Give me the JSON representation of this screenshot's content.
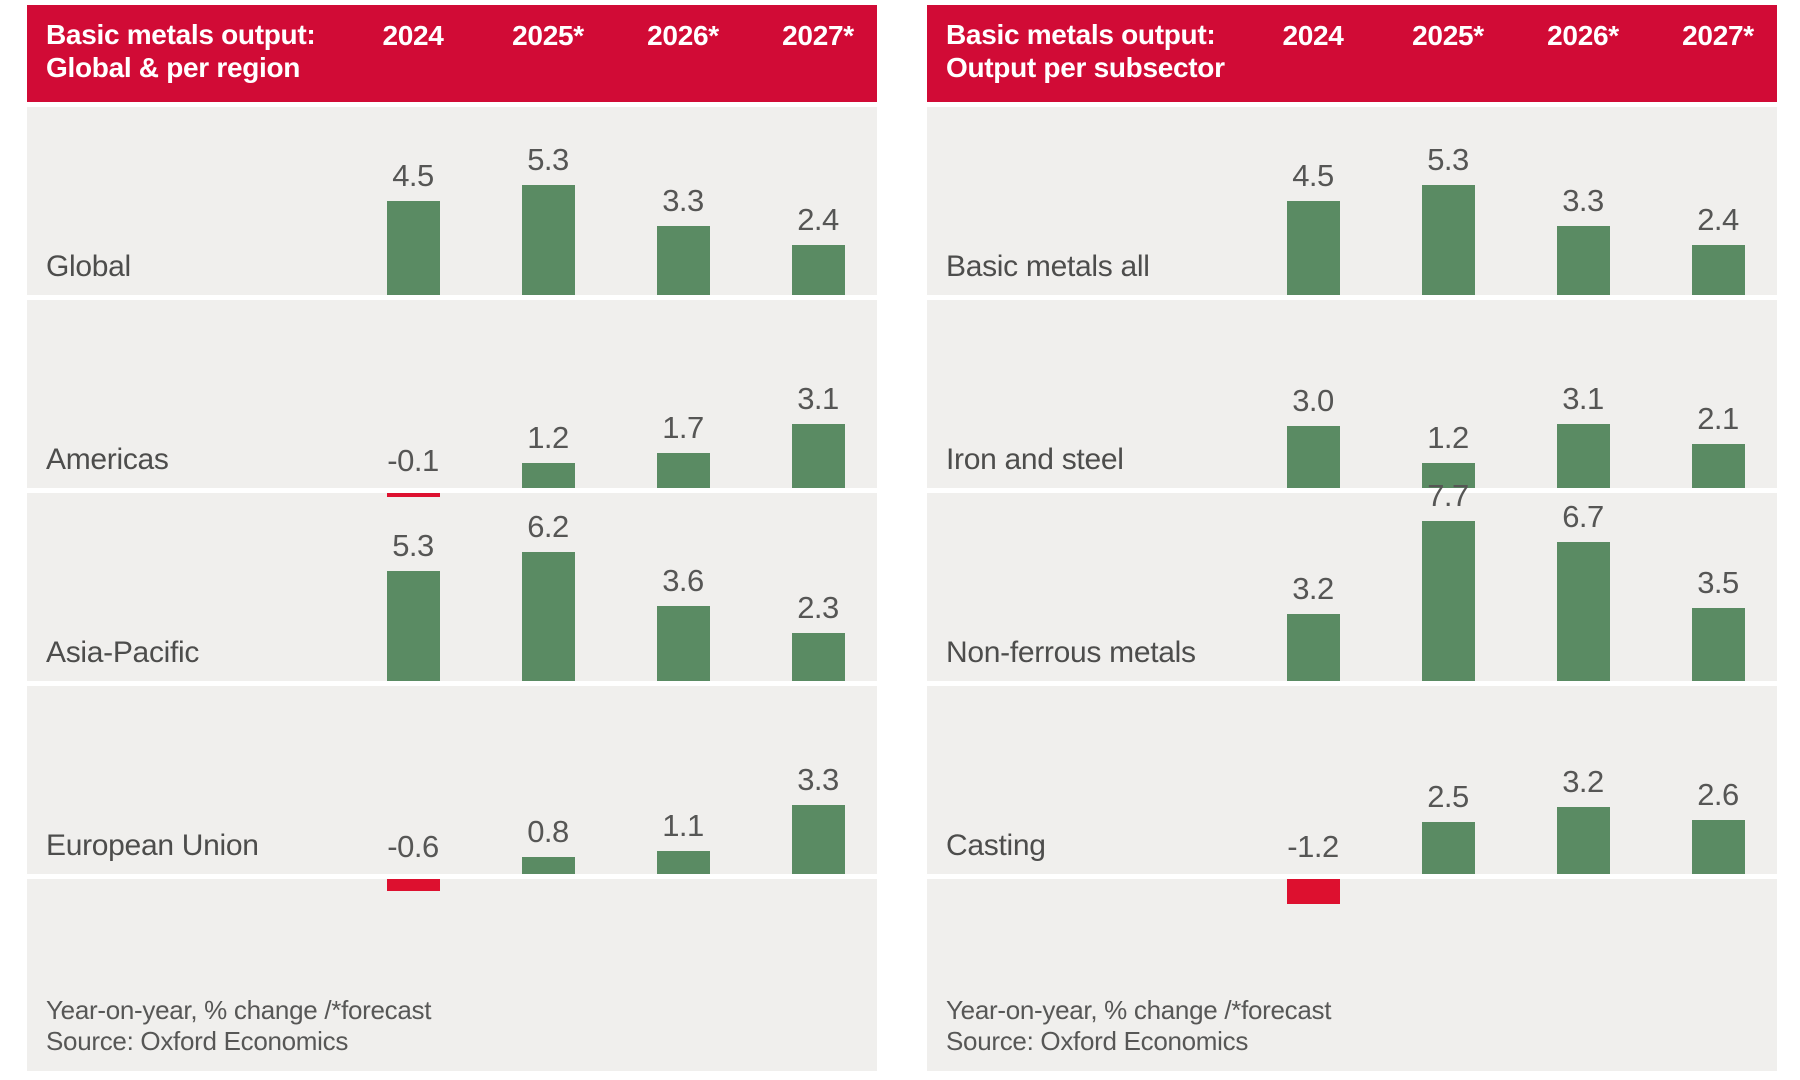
{
  "colors": {
    "header_red": "#d10b36",
    "negative_bar_red": "#dd102f",
    "positive_bar_green": "#5a8b63",
    "band_gray": "#f0efed",
    "label_gray": "#565655",
    "header_text": "#ffffff"
  },
  "panels": [
    {
      "title_line1": "Basic metals output:",
      "title_line2": "Global & per region",
      "years": [
        "2024",
        "2025*",
        "2026*",
        "2027*"
      ],
      "rows": [
        {
          "label": "Global",
          "values": [
            4.5,
            5.3,
            3.3,
            2.4
          ]
        },
        {
          "label": "Americas",
          "values": [
            -0.1,
            1.2,
            1.7,
            3.1
          ]
        },
        {
          "label": "Asia-Pacific",
          "values": [
            5.3,
            6.2,
            3.6,
            2.3
          ]
        },
        {
          "label": "European Union",
          "values": [
            -0.6,
            0.8,
            1.1,
            3.3
          ]
        }
      ],
      "footnote": "Year-on-year, % change /*forecast",
      "source": "Source: Oxford Economics"
    },
    {
      "title_line1": "Basic metals output:",
      "title_line2": "Output per subsector",
      "years": [
        "2024",
        "2025*",
        "2026*",
        "2027*"
      ],
      "rows": [
        {
          "label": "Basic metals all",
          "values": [
            4.5,
            5.3,
            3.3,
            2.4
          ]
        },
        {
          "label": "Iron and steel",
          "values": [
            3.0,
            1.2,
            3.1,
            2.1
          ]
        },
        {
          "label": "Non-ferrous metals",
          "values": [
            3.2,
            7.7,
            6.7,
            3.5
          ]
        },
        {
          "label": "Casting",
          "values": [
            -1.2,
            2.5,
            3.2,
            2.6
          ]
        }
      ],
      "footnote": "Year-on-year, % change /*forecast",
      "source": "Source: Oxford Economics"
    }
  ],
  "chart_data": [
    {
      "type": "bar",
      "title": "Basic metals output: Global & per region",
      "categories": [
        "Global",
        "Americas",
        "Asia-Pacific",
        "European Union"
      ],
      "x": [
        "2024",
        "2025*",
        "2026*",
        "2027*"
      ],
      "series": [
        {
          "name": "Global",
          "values": [
            4.5,
            5.3,
            3.3,
            2.4
          ]
        },
        {
          "name": "Americas",
          "values": [
            -0.1,
            1.2,
            1.7,
            3.1
          ]
        },
        {
          "name": "Asia-Pacific",
          "values": [
            5.3,
            6.2,
            3.6,
            2.3
          ]
        },
        {
          "name": "European Union",
          "values": [
            -0.6,
            0.8,
            1.1,
            3.3
          ]
        }
      ],
      "ylabel": "Year-on-year, % change",
      "note": "Year-on-year, % change /*forecast",
      "source": "Source: Oxford Economics",
      "positive_color": "#5a8b63",
      "negative_color": "#dd102f",
      "legend_position": "none",
      "grid": false
    },
    {
      "type": "bar",
      "title": "Basic metals output: Output per subsector",
      "categories": [
        "Basic metals all",
        "Iron and steel",
        "Non-ferrous metals",
        "Casting"
      ],
      "x": [
        "2024",
        "2025*",
        "2026*",
        "2027*"
      ],
      "series": [
        {
          "name": "Basic metals all",
          "values": [
            4.5,
            5.3,
            3.3,
            2.4
          ]
        },
        {
          "name": "Iron and steel",
          "values": [
            3.0,
            1.2,
            3.1,
            2.1
          ]
        },
        {
          "name": "Non-ferrous metals",
          "values": [
            3.2,
            7.7,
            6.7,
            3.5
          ]
        },
        {
          "name": "Casting",
          "values": [
            -1.2,
            2.5,
            3.2,
            2.6
          ]
        }
      ],
      "ylabel": "Year-on-year, % change",
      "note": "Year-on-year, % change /*forecast",
      "source": "Source: Oxford Economics",
      "positive_color": "#5a8b63",
      "negative_color": "#dd102f",
      "legend_position": "none",
      "grid": false
    }
  ]
}
